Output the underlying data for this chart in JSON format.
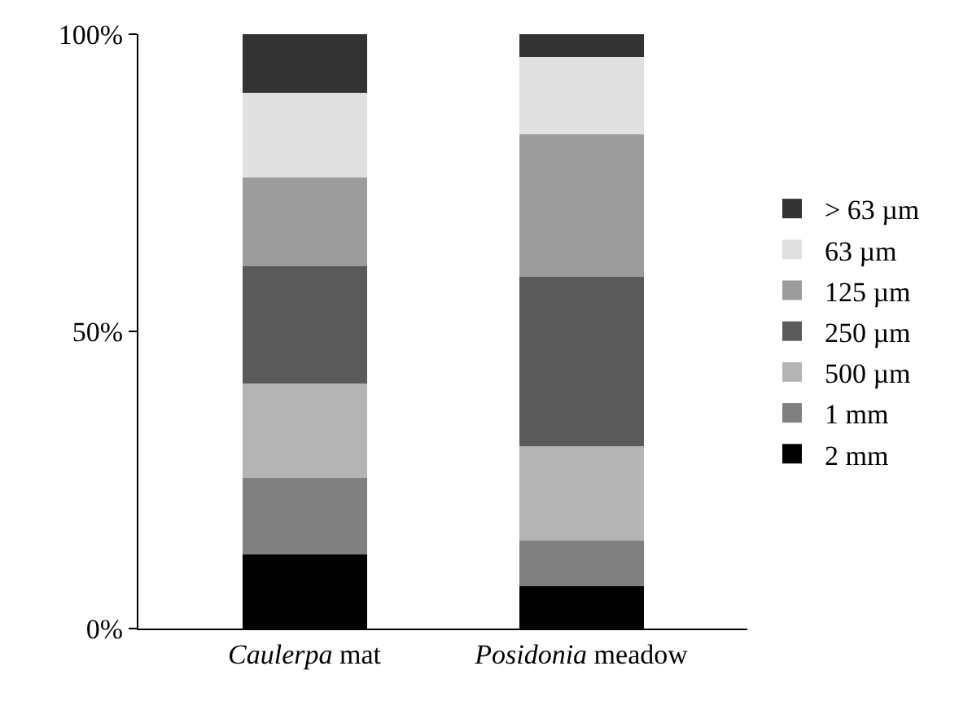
{
  "chart_data": {
    "type": "bar",
    "stacked": true,
    "categories": [
      "Caulerpa mat",
      "Posidonia meadow"
    ],
    "series": [
      {
        "name": "2 mm",
        "color": "#000000",
        "values": [
          12.5,
          7.1
        ]
      },
      {
        "name": "1 mm",
        "color": "#808080",
        "values": [
          12.8,
          7.7
        ]
      },
      {
        "name": "500 µm",
        "color": "#b4b4b4",
        "values": [
          16.0,
          15.9
        ]
      },
      {
        "name": "250 µm",
        "color": "#5a5a5a",
        "values": [
          19.7,
          28.5
        ]
      },
      {
        "name": "125 µm",
        "color": "#9c9c9c",
        "values": [
          14.9,
          24.0
        ]
      },
      {
        "name": "63 µm",
        "color": "#e0e0e0",
        "values": [
          14.3,
          13.0
        ]
      },
      {
        "name": "> 63 µm",
        "color": "#333333",
        "values": [
          9.8,
          3.8
        ]
      }
    ],
    "ylim": [
      0,
      100
    ],
    "yticks": [
      {
        "value": 0,
        "label": "0%"
      },
      {
        "value": 50,
        "label": "50%"
      },
      {
        "value": 100,
        "label": "100%"
      }
    ],
    "legend": "right"
  }
}
